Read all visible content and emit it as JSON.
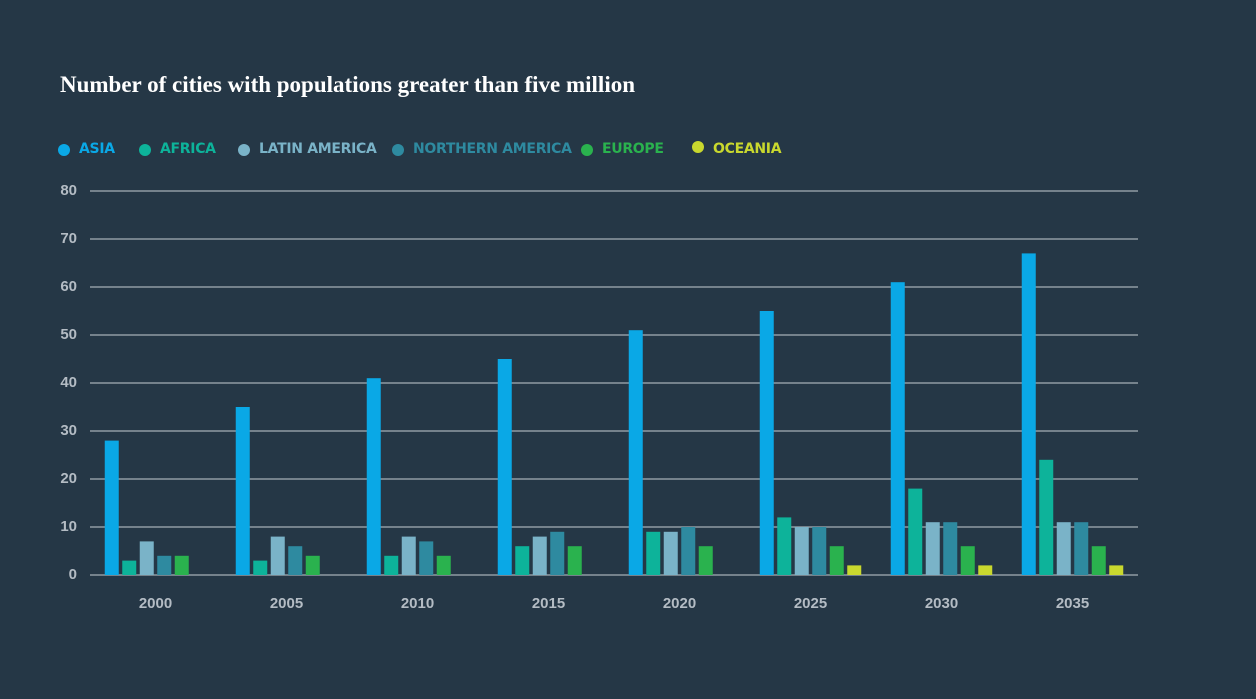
{
  "chart_data": {
    "type": "bar",
    "title": "Number of cities with populations greater than five million",
    "categories": [
      "2000",
      "2005",
      "2010",
      "2015",
      "2020",
      "2025",
      "2030",
      "2035"
    ],
    "series": [
      {
        "name": "ASIA",
        "color": "#0aa8e6",
        "values": [
          28,
          35,
          41,
          45,
          51,
          55,
          61,
          67
        ]
      },
      {
        "name": "AFRICA",
        "color": "#0db39a",
        "values": [
          3,
          3,
          4,
          6,
          9,
          12,
          18,
          24
        ]
      },
      {
        "name": "LATIN AMERICA",
        "color": "#7ab3c8",
        "values": [
          7,
          8,
          8,
          8,
          9,
          10,
          11,
          11
        ]
      },
      {
        "name": "NORTHERN AMERICA",
        "color": "#2e8aa0",
        "values": [
          4,
          6,
          7,
          9,
          10,
          10,
          11,
          11
        ]
      },
      {
        "name": "EUROPE",
        "color": "#2ab24e",
        "values": [
          4,
          4,
          4,
          6,
          6,
          6,
          6,
          6
        ]
      },
      {
        "name": "OCEANIA",
        "color": "#c9d82e",
        "values": [
          0,
          0,
          0,
          0,
          0,
          2,
          2,
          2
        ]
      }
    ],
    "ylim": [
      0,
      80
    ],
    "yticks": [
      0,
      10,
      20,
      30,
      40,
      50,
      60,
      70,
      80
    ],
    "grid": true
  }
}
